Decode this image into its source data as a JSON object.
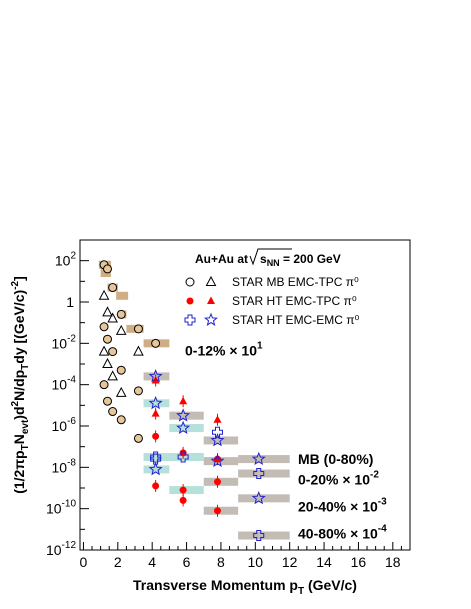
{
  "chart_data": {
    "type": "scatter",
    "xlabel": "Transverse Momentum p_T (GeV/c)",
    "ylabel": "(1/2πp_T N_evt)d²N/dp_T dy [(GeV/c)⁻²]",
    "xlim": [
      -0.2,
      19
    ],
    "ylim": [
      -12,
      3
    ],
    "y_scale": "log",
    "grid": false,
    "legend_position": "top-right",
    "header": "Au+Au at √s_NN = 200 GeV",
    "x_ticks": [
      0,
      2,
      4,
      6,
      8,
      10,
      12,
      14,
      16,
      18
    ],
    "y_tick_labels": [
      {
        "exp": 2,
        "label": "10",
        "sup": "2"
      },
      {
        "exp": 0,
        "label": "1",
        "sup": ""
      },
      {
        "exp": -2,
        "label": "10",
        "sup": "-2"
      },
      {
        "exp": -4,
        "label": "10",
        "sup": "-4"
      },
      {
        "exp": -6,
        "label": "10",
        "sup": "-6"
      },
      {
        "exp": -8,
        "label": "10",
        "sup": "-8"
      },
      {
        "exp": -10,
        "label": "10",
        "sup": "-10"
      },
      {
        "exp": -12,
        "label": "10",
        "sup": "-12"
      }
    ],
    "legend": [
      {
        "text": "STAR MB EMC-TPC π⁰",
        "markers": [
          "open-circle",
          "open-triangle"
        ]
      },
      {
        "text": "STAR HT EMC-TPC π⁰",
        "markers": [
          "red-circle",
          "red-triangle"
        ]
      },
      {
        "text": "STAR HT EMC-EMC π⁰",
        "markers": [
          "open-cross",
          "open-star"
        ]
      }
    ],
    "set_labels": [
      {
        "text": "0-12% × 10¹",
        "set": "0-12"
      },
      {
        "text": "MB (0-80%)",
        "set": "MB"
      },
      {
        "text": "0-20% × 10⁻²",
        "set": "0-20"
      },
      {
        "text": "20-40% × 10⁻³",
        "set": "20-40"
      },
      {
        "text": "40-80% × 10⁻⁴",
        "set": "40-80"
      }
    ],
    "colors": {
      "mb_marker_fill": "#e7c79a",
      "ht_marker": "#ff0000",
      "emc_marker": "#2020d0",
      "sys_box": "#c8a070",
      "sys_box_gray": "#b8b0a8",
      "sys_box_teal": "#a8dcd4"
    },
    "series": [
      {
        "name": "STAR MB EMC-TPC π⁰",
        "set": "0-12",
        "marker": "circle-fill",
        "x": [
          1.2,
          1.4,
          1.7,
          2.2,
          3.2,
          4.2
        ],
        "y": [
          1.8,
          1.6,
          0.7,
          -0.6,
          -1.3,
          -2.0
        ]
      },
      {
        "name": "STAR MB EMC-TPC π⁰",
        "set": "MB",
        "marker": "triangle-open",
        "x": [
          1.2,
          1.4,
          1.7,
          2.2,
          3.2
        ],
        "y": [
          0.3,
          -0.5,
          -0.8,
          -1.4,
          -2.4
        ]
      },
      {
        "name": "STAR MB EMC-TPC π⁰",
        "set": "0-20",
        "marker": "circle-fill",
        "x": [
          1.2,
          1.4,
          1.7,
          2.2,
          3.2
        ],
        "y": [
          -1.2,
          -1.8,
          -2.4,
          -3.3,
          -4.3
        ]
      },
      {
        "name": "STAR MB EMC-TPC π⁰",
        "set": "20-40",
        "marker": "triangle-open",
        "x": [
          1.2,
          1.4,
          1.7,
          2.2
        ],
        "y": [
          -2.4,
          -3.0,
          -3.6,
          -4.4
        ]
      },
      {
        "name": "STAR MB EMC-TPC π⁰",
        "set": "40-80",
        "marker": "circle-fill",
        "x": [
          1.2,
          1.4,
          1.7,
          2.2,
          3.2
        ],
        "y": [
          -4.0,
          -4.8,
          -5.3,
          -5.7,
          -6.6
        ]
      },
      {
        "name": "STAR HT EMC-TPC π⁰",
        "set": "0-12",
        "marker": "tri",
        "x": [
          4.2,
          5.8,
          7.8
        ],
        "y": [
          -3.8,
          -4.8,
          -5.7
        ]
      },
      {
        "name": "STAR HT EMC-TPC π⁰",
        "set": "MB",
        "marker": "tri",
        "x": [
          4.2
        ],
        "y": [
          -5.4
        ]
      },
      {
        "name": "STAR HT EMC-TPC π⁰",
        "set": "0-20",
        "marker": "circ",
        "x": [
          4.2,
          5.8,
          7.8
        ],
        "y": [
          -6.5,
          -7.3,
          -7.6
        ]
      },
      {
        "name": "STAR HT EMC-TPC π⁰",
        "set": "20-40",
        "marker": "circ",
        "x": [
          4.2,
          5.8,
          7.8
        ],
        "y": [
          -8.9,
          -9.1,
          -8.7
        ]
      },
      {
        "name": "STAR HT EMC-TPC π⁰",
        "set": "40-80",
        "marker": "circ",
        "x": [
          5.8,
          7.8
        ],
        "y": [
          -9.6,
          -10.1
        ]
      },
      {
        "name": "STAR HT EMC-EMC π⁰",
        "set": "0-12",
        "marker": "star",
        "x": [
          4.2,
          5.8,
          7.8
        ],
        "y": [
          -3.6,
          -5.5,
          -6.7
        ]
      },
      {
        "name": "STAR HT EMC-EMC π⁰",
        "set": "MB",
        "marker": "star",
        "x": [
          4.2,
          5.8,
          7.8,
          10.2
        ],
        "y": [
          -4.9,
          -6.1,
          -7.7,
          -7.6
        ]
      },
      {
        "name": "STAR HT EMC-EMC π⁰",
        "set": "0-20",
        "marker": "cross",
        "x": [
          4.2,
          5.8,
          7.8,
          10.2
        ],
        "y": [
          -7.5,
          -7.5,
          -6.3,
          -8.3
        ]
      },
      {
        "name": "STAR HT EMC-EMC π⁰",
        "set": "20-40",
        "marker": "star",
        "x": [
          4.2,
          10.2
        ],
        "y": [
          -8.1,
          -9.5
        ]
      },
      {
        "name": "STAR HT EMC-EMC π⁰",
        "set": "40-80",
        "marker": "cross",
        "x": [
          4.2,
          10.2
        ],
        "y": [
          -7.6,
          -11.3
        ]
      }
    ],
    "systematics": [
      {
        "x0": 0.9,
        "x1": 1.6,
        "y": 1.8,
        "tone": "tan"
      },
      {
        "x0": 1.0,
        "x1": 1.6,
        "y": 1.4,
        "tone": "tan"
      },
      {
        "x0": 1.4,
        "x1": 2.0,
        "y": 0.7,
        "tone": "tan"
      },
      {
        "x0": 1.9,
        "x1": 2.6,
        "y": 0.3,
        "tone": "tan"
      },
      {
        "x0": 2.0,
        "x1": 2.5,
        "y": -0.6,
        "tone": "tan"
      },
      {
        "x0": 2.5,
        "x1": 3.5,
        "y": -1.3,
        "tone": "tan"
      },
      {
        "x0": 3.5,
        "x1": 5.0,
        "y": -2.0,
        "tone": "tan"
      },
      {
        "x0": 3.5,
        "x1": 5.0,
        "y": -3.6,
        "tone": "gray"
      },
      {
        "x0": 3.5,
        "x1": 5.0,
        "y": -4.9,
        "tone": "teal"
      },
      {
        "x0": 3.5,
        "x1": 5.0,
        "y": -7.5,
        "tone": "teal"
      },
      {
        "x0": 3.5,
        "x1": 5.0,
        "y": -8.1,
        "tone": "teal"
      },
      {
        "x0": 5.0,
        "x1": 7.0,
        "y": -5.5,
        "tone": "gray"
      },
      {
        "x0": 5.0,
        "x1": 7.0,
        "y": -6.1,
        "tone": "teal"
      },
      {
        "x0": 5.0,
        "x1": 7.0,
        "y": -7.5,
        "tone": "teal"
      },
      {
        "x0": 5.0,
        "x1": 7.0,
        "y": -9.1,
        "tone": "teal"
      },
      {
        "x0": 7.0,
        "x1": 9.0,
        "y": -6.7,
        "tone": "gray"
      },
      {
        "x0": 7.0,
        "x1": 9.0,
        "y": -7.7,
        "tone": "gray"
      },
      {
        "x0": 7.0,
        "x1": 9.0,
        "y": -8.7,
        "tone": "gray"
      },
      {
        "x0": 7.0,
        "x1": 9.0,
        "y": -10.1,
        "tone": "gray"
      },
      {
        "x0": 9.0,
        "x1": 12.0,
        "y": -7.6,
        "tone": "gray"
      },
      {
        "x0": 9.0,
        "x1": 12.0,
        "y": -8.3,
        "tone": "gray"
      },
      {
        "x0": 9.0,
        "x1": 12.0,
        "y": -9.5,
        "tone": "gray"
      },
      {
        "x0": 9.0,
        "x1": 12.0,
        "y": -11.3,
        "tone": "gray"
      }
    ]
  }
}
